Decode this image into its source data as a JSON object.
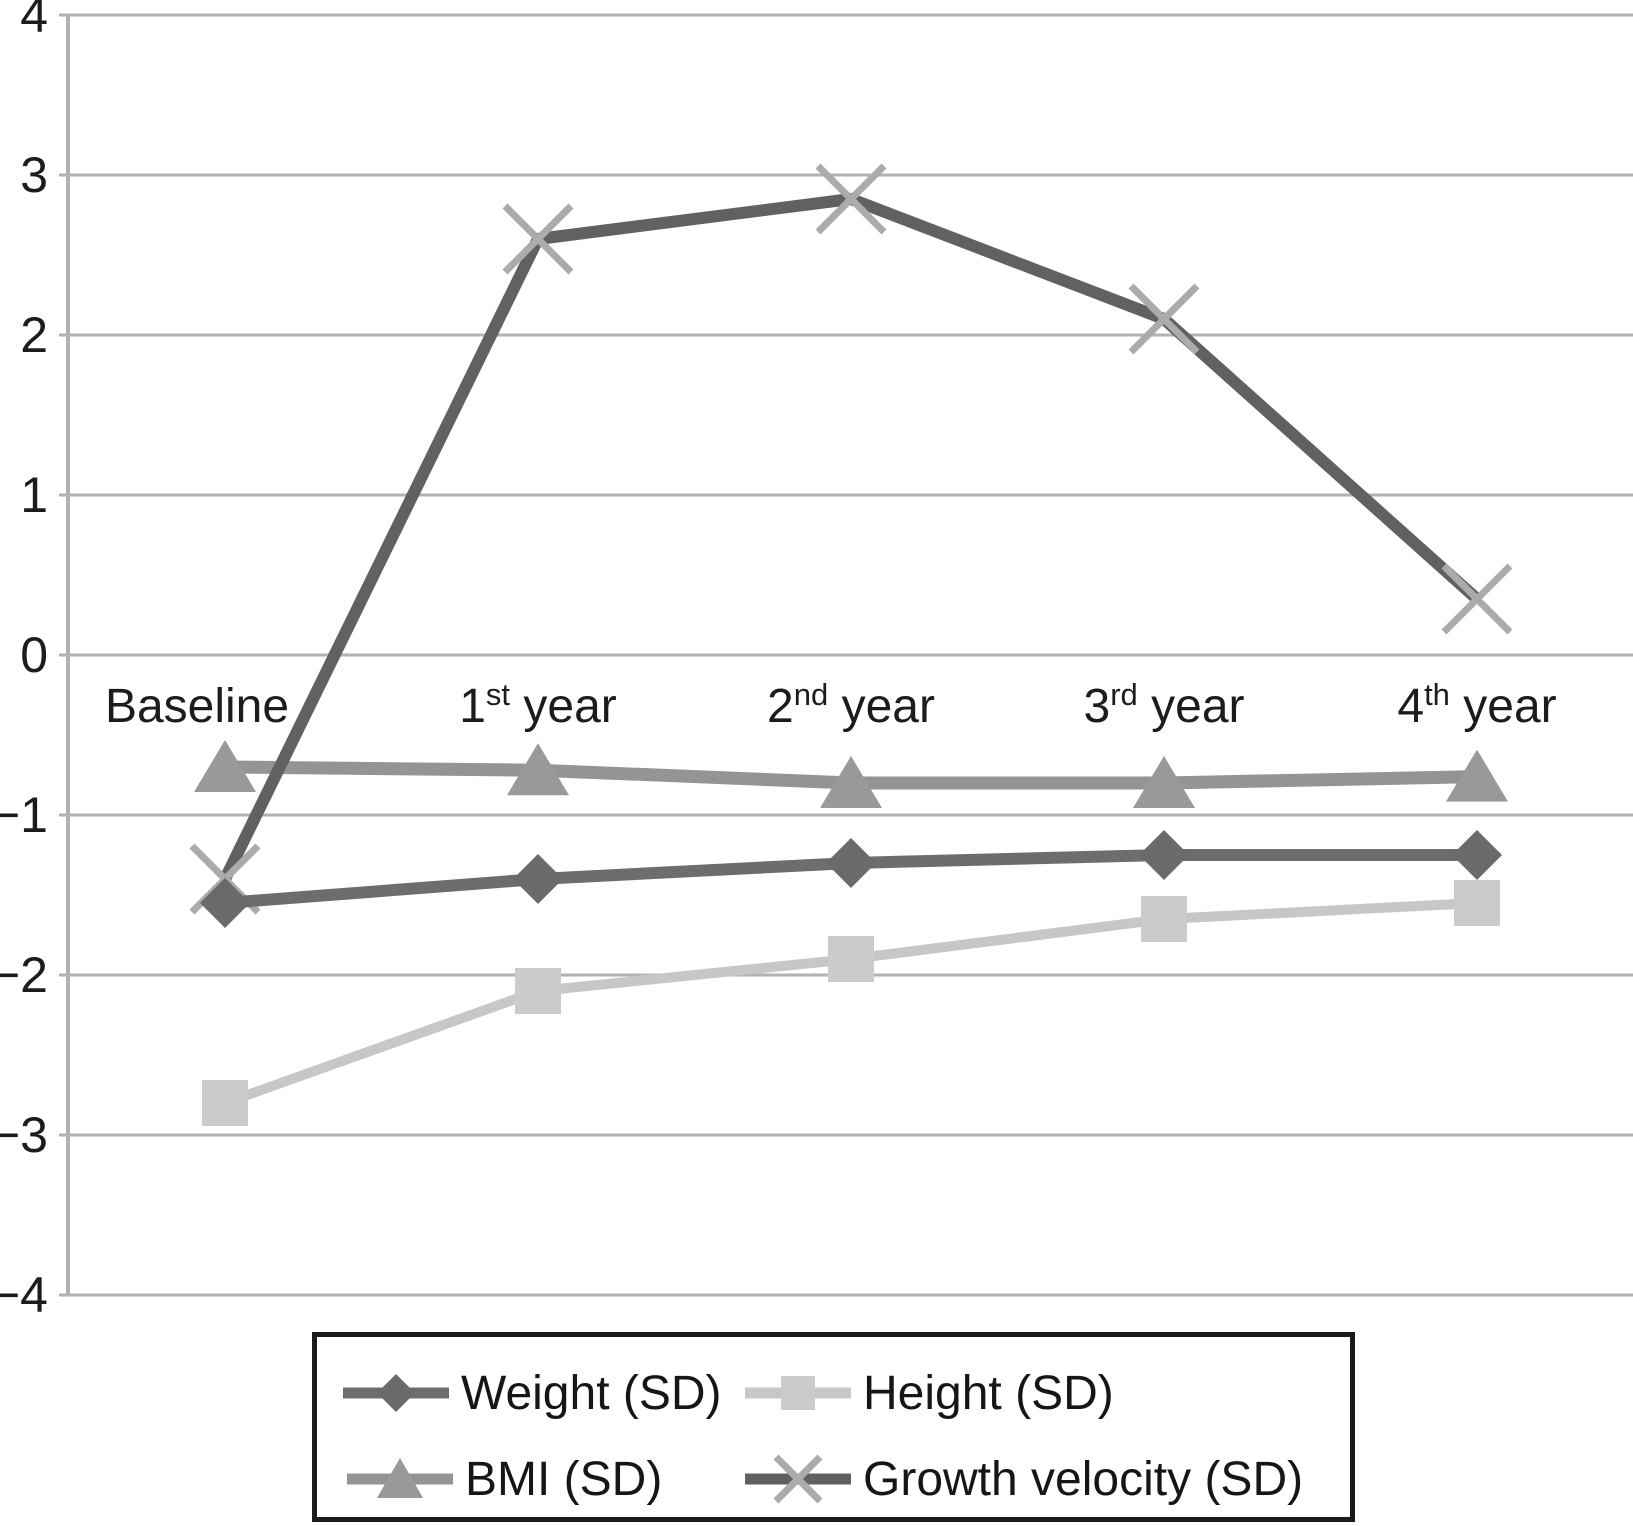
{
  "chart_data": {
    "type": "line",
    "title": "",
    "xlabel": "",
    "ylabel": "",
    "categories": [
      "Baseline",
      "1st year",
      "2nd year",
      "3rd year",
      "4th year"
    ],
    "category_labels": [
      {
        "text": "Baseline",
        "sup": "",
        "rest": ""
      },
      {
        "text": "1",
        "sup": "st",
        "rest": " year"
      },
      {
        "text": "2",
        "sup": "nd",
        "rest": " year"
      },
      {
        "text": "3",
        "sup": "rd",
        "rest": " year"
      },
      {
        "text": "4",
        "sup": "th",
        "rest": " year"
      }
    ],
    "series": [
      {
        "name": "Weight (SD)",
        "marker": "diamond",
        "color": "#6d6d6d",
        "marker_color": "#6a6a6a",
        "values": [
          -1.55,
          -1.4,
          -1.3,
          -1.25,
          -1.25
        ]
      },
      {
        "name": "Height (SD)",
        "marker": "square",
        "color": "#c7c7c7",
        "marker_color": "#cbcbcb",
        "values": [
          -2.8,
          -2.1,
          -1.9,
          -1.65,
          -1.55
        ]
      },
      {
        "name": "BMI (SD)",
        "marker": "triangle",
        "color": "#949494",
        "marker_color": "#999999",
        "values": [
          -0.7,
          -0.72,
          -0.8,
          -0.8,
          -0.76
        ]
      },
      {
        "name": "Growth velocity (SD)",
        "marker": "x",
        "color": "#616161",
        "marker_color": "#ababab",
        "values": [
          -1.4,
          2.6,
          2.85,
          2.1,
          0.35
        ]
      }
    ],
    "yticks": [
      4,
      3,
      2,
      1,
      0,
      -1,
      -2,
      -3,
      -4
    ],
    "ylim": [
      -4,
      4
    ],
    "grid": true,
    "legend_position": "bottom",
    "colors": {
      "grid": "#b2b2b2",
      "axis": "#b2b2b2",
      "tick_text": "#1c1c1c",
      "category_text": "#1c1c1c",
      "legend_border": "#1b1b1b",
      "background": "#ffffff"
    }
  }
}
